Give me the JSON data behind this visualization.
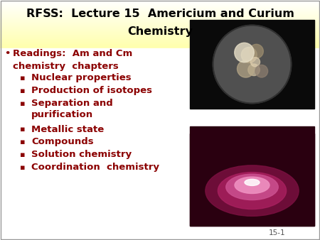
{
  "title_line1": "RFSS:  Lecture 15  Americium and Curium",
  "title_line2": "Chemistry",
  "title_color": "#000000",
  "title_bg_top": "#ffffaa",
  "title_bg_bottom": "#ffffff",
  "body_bg_color": "#ffffff",
  "bullet_color": "#8b0000",
  "slide_border_color": "#aaaaaa",
  "main_bullet_line1": "Readings:  Am and Cm",
  "main_bullet_line2": "chemistry  chapters",
  "sub_bullets": [
    "Nuclear properties",
    "Production of isotopes",
    "Separation and",
    "purification",
    "Metallic state",
    "Compounds",
    "Solution chemistry",
    "Coordination  chemistry"
  ],
  "page_number": "15-1",
  "title_fontsize": 11.5,
  "main_bullet_fontsize": 9.5,
  "sub_bullet_fontsize": 9.5
}
